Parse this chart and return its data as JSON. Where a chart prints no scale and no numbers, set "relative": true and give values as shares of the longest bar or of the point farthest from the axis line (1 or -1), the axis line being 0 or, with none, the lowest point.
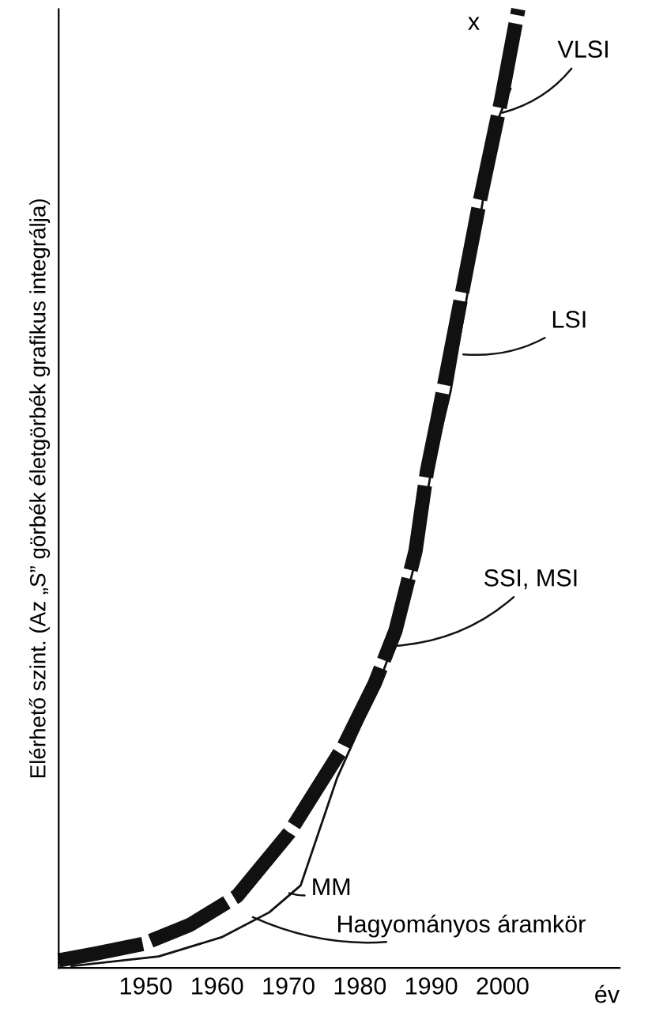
{
  "chart_data": {
    "type": "line",
    "relative": true,
    "xlabel": "év",
    "ylabel": "Elérhető szint. (Az „S” görbék életgörbék grafikus integrálja)",
    "xlim": [
      1937.8,
      2016.4
    ],
    "xticks": [
      1950,
      1960,
      1970,
      1980,
      1990,
      2000
    ],
    "series": [
      {
        "color": "#111111",
        "line_style": "dashed",
        "x": [
          1937.8,
          1942.9,
          1949.6,
          1956.2,
          1962.8,
          1970.1,
          1977.7,
          1982.1,
          1985.0,
          1987.8,
          1989.4,
          1990.9,
          1993.8,
          1996.7,
          1999.8,
          2002.2
        ],
        "values": [
          0.008,
          0.015,
          0.025,
          0.045,
          0.075,
          0.141,
          0.231,
          0.297,
          0.352,
          0.435,
          0.518,
          0.573,
          0.684,
          0.796,
          0.905,
          1.0
        ]
      },
      {
        "color": "#111111",
        "line_style": "solid",
        "x": [
          1939.6,
          1951.8,
          1960.6,
          1967.3,
          1971.7,
          1976.8,
          1982.1,
          1985.0,
          1987.6,
          1990.0,
          1992.7,
          1995.6,
          1997.6,
          1999.3,
          2001.1
        ],
        "values": [
          0.002,
          0.012,
          0.032,
          0.058,
          0.086,
          0.198,
          0.286,
          0.344,
          0.419,
          0.518,
          0.601,
          0.726,
          0.817,
          0.884,
          0.917
        ]
      }
    ],
    "annotations": [
      {
        "text": "VLSI",
        "x": 2000.0,
        "y": 0.892
      },
      {
        "text": "LSI",
        "x": 1994.5,
        "y": 0.64
      },
      {
        "text": "SSI, MSI",
        "x": 1985.0,
        "y": 0.336
      },
      {
        "text": "MM",
        "x": 1970.1,
        "y": 0.078
      },
      {
        "text": "Hagyományos áramkör",
        "x": 1965.0,
        "y": 0.053
      },
      "x"
    ]
  }
}
